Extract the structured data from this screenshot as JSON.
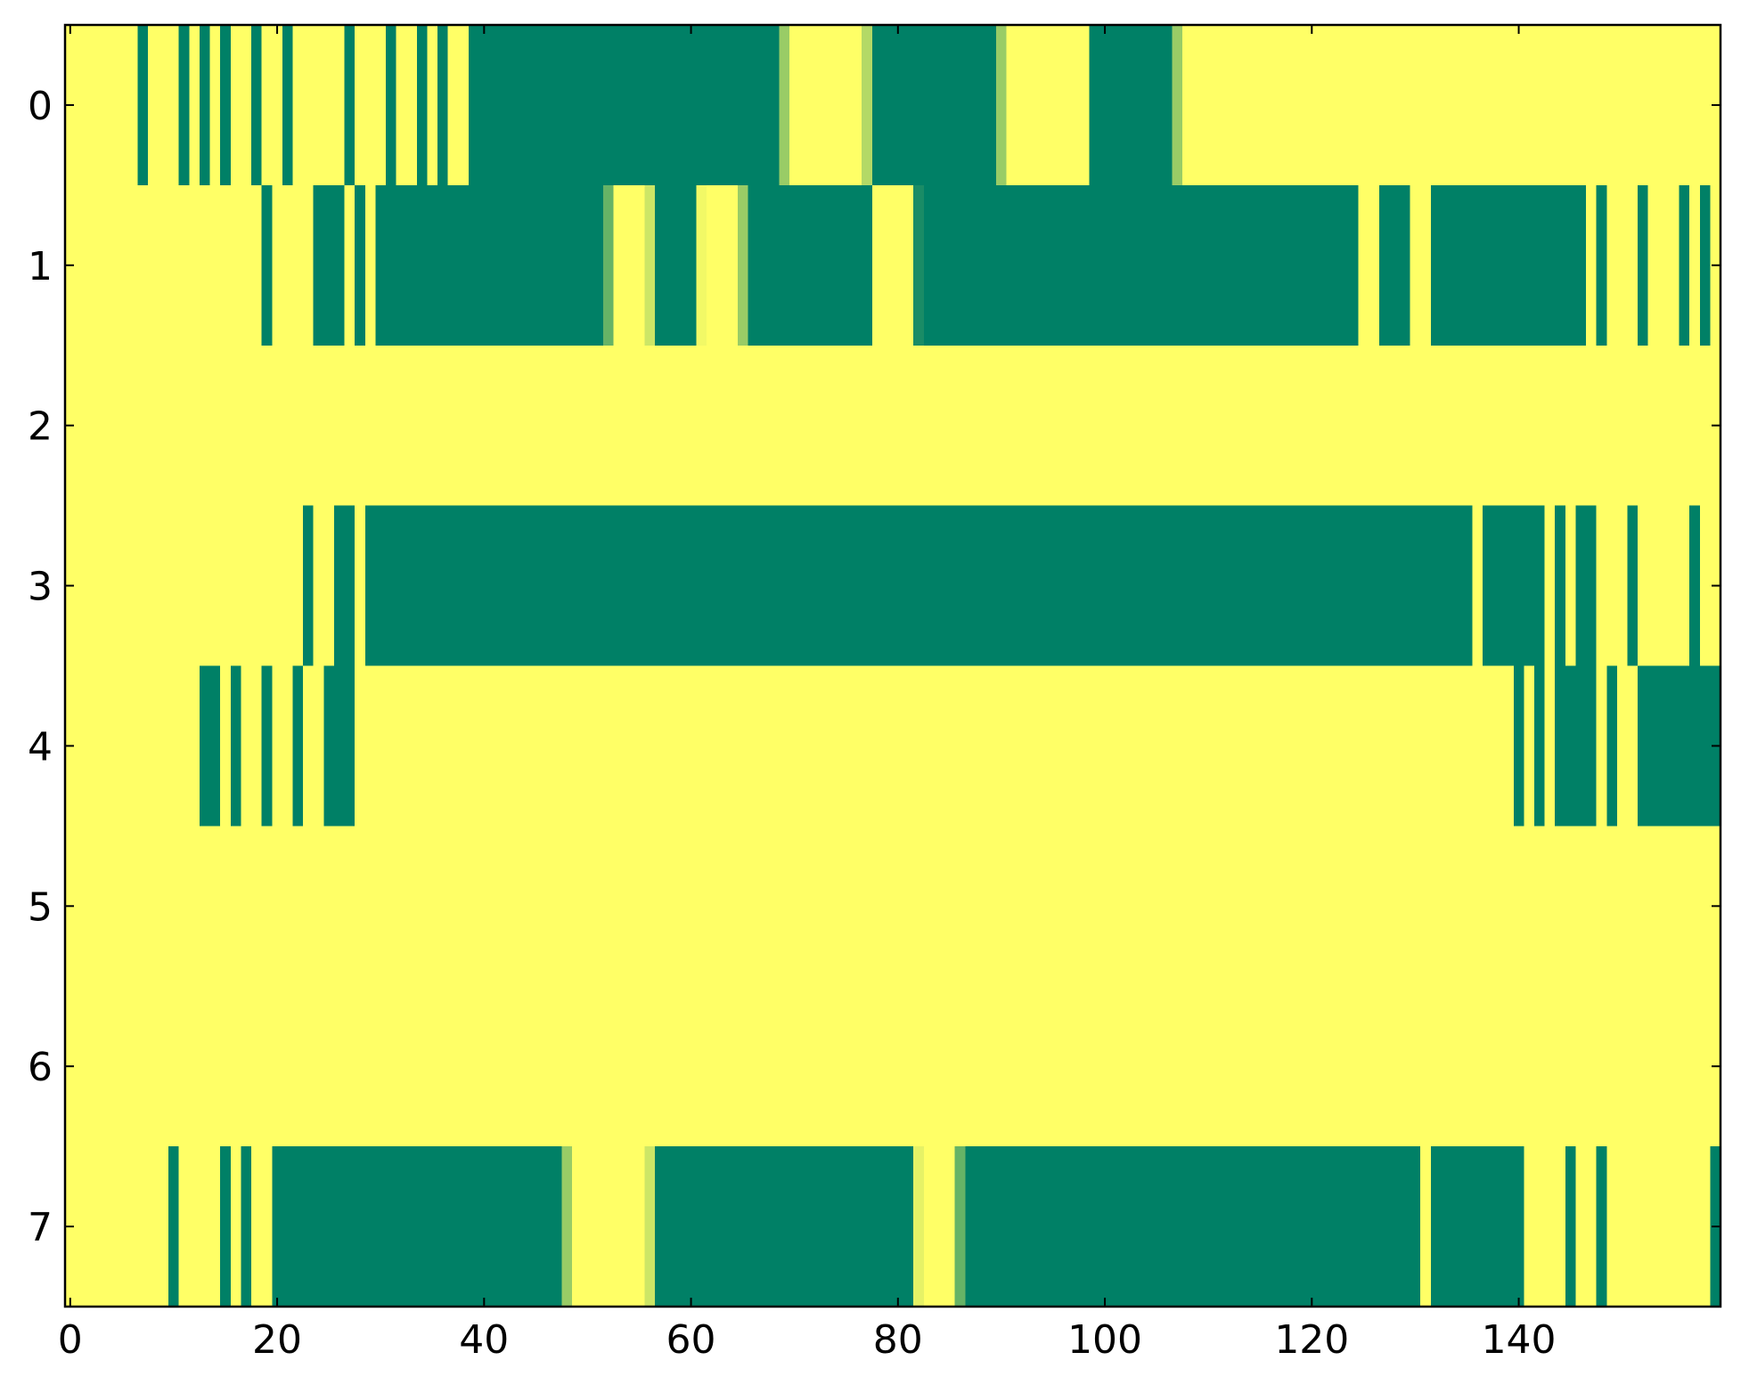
{
  "chart_data": {
    "type": "heatmap",
    "colormap": "summer",
    "vlim": [
      0,
      1
    ],
    "xlim": [
      -0.5,
      159.5
    ],
    "ylim": [
      7.5,
      -0.5
    ],
    "xticks": [
      0,
      20,
      40,
      60,
      80,
      100,
      120,
      140
    ],
    "yticks": [
      0,
      1,
      2,
      3,
      4,
      5,
      6,
      7
    ],
    "values": [
      [
        1,
        1,
        1,
        1,
        1,
        1,
        1,
        0,
        1,
        1,
        1,
        0,
        1,
        0,
        1,
        0,
        1,
        1,
        0,
        1,
        1,
        0,
        1,
        1,
        1,
        1,
        1,
        0,
        1,
        1,
        1,
        0,
        1,
        1,
        0,
        1,
        0,
        1,
        1,
        0,
        0,
        0,
        0,
        0,
        0,
        0,
        0,
        0,
        0,
        0,
        0,
        0,
        0,
        0,
        0,
        0,
        0,
        0,
        0,
        0,
        0,
        0,
        0,
        0,
        0,
        0,
        0,
        0,
        0,
        0.6,
        1,
        1,
        1,
        1,
        1,
        1,
        1,
        0.7,
        0,
        0,
        0,
        0,
        0,
        0,
        0,
        0,
        0,
        0,
        0,
        0,
        0.6,
        1,
        1,
        1,
        1,
        1,
        1,
        1,
        1,
        0,
        0,
        0,
        0,
        0,
        0,
        0,
        0,
        0.6,
        1,
        1,
        1,
        1,
        1,
        1,
        1,
        1,
        1,
        1,
        1,
        1,
        1,
        1,
        1,
        1,
        1,
        1,
        1,
        1,
        1,
        1,
        1,
        1,
        1,
        1,
        1,
        1,
        1,
        1,
        1,
        1,
        1,
        1,
        1,
        1,
        1,
        1,
        1,
        1,
        1,
        1,
        1,
        1,
        1,
        1,
        1,
        1,
        1,
        1,
        1,
        1
      ],
      [
        1,
        1,
        1,
        1,
        1,
        1,
        1,
        1,
        1,
        1,
        1,
        1,
        1,
        1,
        1,
        1,
        1,
        1,
        1,
        0,
        1,
        1,
        1,
        1,
        0,
        0,
        0,
        1,
        0,
        1,
        0,
        0,
        0,
        0,
        0,
        0,
        0,
        0,
        0,
        0,
        0,
        0,
        0,
        0,
        0,
        0,
        0,
        0,
        0,
        0,
        0,
        0,
        0.4,
        1,
        1,
        1,
        0.8,
        0,
        0,
        0,
        0,
        0.95,
        1,
        1,
        1,
        0.6,
        0,
        0,
        0,
        0,
        0,
        0,
        0,
        0,
        0,
        0,
        0,
        0,
        1,
        1,
        1,
        1,
        0.1,
        0,
        0,
        0,
        0,
        0,
        0,
        0,
        0,
        0,
        0,
        0,
        0,
        0,
        0,
        0,
        0,
        0,
        0,
        0,
        0,
        0,
        0,
        0,
        0,
        0,
        0,
        0,
        0,
        0,
        0,
        0,
        0,
        0,
        0,
        0,
        0,
        0,
        0,
        0,
        0,
        0,
        0,
        1,
        1,
        0,
        0,
        0,
        1,
        1,
        0,
        0,
        0,
        0,
        0,
        0,
        0,
        0,
        0,
        0,
        0,
        0,
        0,
        0,
        0,
        1,
        0,
        1,
        1,
        1,
        0,
        1,
        1,
        1,
        0,
        1,
        0,
        1
      ],
      [
        1,
        1,
        1,
        1,
        1,
        1,
        1,
        1,
        1,
        1,
        1,
        1,
        1,
        1,
        1,
        1,
        1,
        1,
        1,
        1,
        1,
        1,
        1,
        1,
        1,
        1,
        1,
        1,
        1,
        1,
        1,
        1,
        1,
        1,
        1,
        1,
        1,
        1,
        1,
        1,
        1,
        1,
        1,
        1,
        1,
        1,
        1,
        1,
        1,
        1,
        1,
        1,
        1,
        1,
        1,
        1,
        1,
        1,
        1,
        1,
        1,
        1,
        1,
        1,
        1,
        1,
        1,
        1,
        1,
        1,
        1,
        1,
        1,
        1,
        1,
        1,
        1,
        1,
        1,
        1,
        1,
        1,
        1,
        1,
        1,
        1,
        1,
        1,
        1,
        1,
        1,
        1,
        1,
        1,
        1,
        1,
        1,
        1,
        1,
        1,
        1,
        1,
        1,
        1,
        1,
        1,
        1,
        1,
        1,
        1,
        1,
        1,
        1,
        1,
        1,
        1,
        1,
        1,
        1,
        1,
        1,
        1,
        1,
        1,
        1,
        1,
        1,
        1,
        1,
        1,
        1,
        1,
        1,
        1,
        1,
        1,
        1,
        1,
        1,
        1,
        1,
        1,
        1,
        1,
        1,
        1,
        1,
        1,
        1,
        1,
        1,
        1,
        1,
        1,
        1,
        1,
        1,
        1,
        1,
        1
      ],
      [
        1,
        1,
        1,
        1,
        1,
        1,
        1,
        1,
        1,
        1,
        1,
        1,
        1,
        1,
        1,
        1,
        1,
        1,
        1,
        1,
        1,
        1,
        1,
        0,
        1,
        1,
        0,
        0,
        1,
        0,
        0,
        0,
        0,
        0,
        0,
        0,
        0,
        0,
        0,
        0,
        0,
        0,
        0,
        0,
        0,
        0,
        0,
        0,
        0,
        0,
        0,
        0,
        0,
        0,
        0,
        0,
        0,
        0,
        0,
        0,
        0,
        0,
        0,
        0,
        0,
        0,
        0,
        0,
        0,
        0,
        0,
        0,
        0,
        0,
        0,
        0,
        0,
        0,
        0,
        0,
        0,
        0,
        0,
        0,
        0,
        0,
        0,
        0,
        0,
        0,
        0,
        0,
        0,
        0,
        0,
        0,
        0,
        0,
        0,
        0,
        0,
        0,
        0,
        0,
        0,
        0,
        0,
        0,
        0,
        0,
        0,
        0,
        0,
        0,
        0,
        0,
        0,
        0,
        0,
        0,
        0,
        0,
        0,
        0,
        0,
        0,
        0,
        0,
        0,
        0,
        0,
        0,
        0,
        0,
        0,
        0,
        1,
        0,
        0,
        0,
        0,
        0,
        0,
        1,
        0,
        1,
        0,
        0,
        1,
        1,
        1,
        0,
        1,
        1,
        1,
        1,
        1,
        0,
        1,
        1
      ],
      [
        1,
        1,
        1,
        1,
        1,
        1,
        1,
        1,
        1,
        1,
        1,
        1,
        1,
        0,
        0,
        1,
        0,
        1,
        1,
        0,
        1,
        1,
        0,
        1,
        1,
        0,
        0,
        0,
        1,
        1,
        1,
        1,
        1,
        1,
        1,
        1,
        1,
        1,
        1,
        1,
        1,
        1,
        1,
        1,
        1,
        1,
        1,
        1,
        1,
        1,
        1,
        1,
        1,
        1,
        1,
        1,
        1,
        1,
        1,
        1,
        1,
        1,
        1,
        1,
        1,
        1,
        1,
        1,
        1,
        1,
        1,
        1,
        1,
        1,
        1,
        1,
        1,
        1,
        1,
        1,
        1,
        1,
        1,
        1,
        1,
        1,
        1,
        1,
        1,
        1,
        1,
        1,
        1,
        1,
        1,
        1,
        1,
        1,
        1,
        1,
        1,
        1,
        1,
        1,
        1,
        1,
        1,
        1,
        1,
        1,
        1,
        1,
        1,
        1,
        1,
        1,
        1,
        1,
        1,
        1,
        1,
        1,
        1,
        1,
        1,
        1,
        1,
        1,
        1,
        1,
        1,
        1,
        1,
        1,
        1,
        1,
        1,
        1,
        1,
        1,
        0,
        1,
        0,
        1,
        0,
        0,
        0,
        0,
        1,
        0,
        1,
        1,
        0,
        0,
        0,
        0,
        0,
        0,
        0,
        0
      ],
      [
        1,
        1,
        1,
        1,
        1,
        1,
        1,
        1,
        1,
        1,
        1,
        1,
        1,
        1,
        1,
        1,
        1,
        1,
        1,
        1,
        1,
        1,
        1,
        1,
        1,
        1,
        1,
        1,
        1,
        1,
        1,
        1,
        1,
        1,
        1,
        1,
        1,
        1,
        1,
        1,
        1,
        1,
        1,
        1,
        1,
        1,
        1,
        1,
        1,
        1,
        1,
        1,
        1,
        1,
        1,
        1,
        1,
        1,
        1,
        1,
        1,
        1,
        1,
        1,
        1,
        1,
        1,
        1,
        1,
        1,
        1,
        1,
        1,
        1,
        1,
        1,
        1,
        1,
        1,
        1,
        1,
        1,
        1,
        1,
        1,
        1,
        1,
        1,
        1,
        1,
        1,
        1,
        1,
        1,
        1,
        1,
        1,
        1,
        1,
        1,
        1,
        1,
        1,
        1,
        1,
        1,
        1,
        1,
        1,
        1,
        1,
        1,
        1,
        1,
        1,
        1,
        1,
        1,
        1,
        1,
        1,
        1,
        1,
        1,
        1,
        1,
        1,
        1,
        1,
        1,
        1,
        1,
        1,
        1,
        1,
        1,
        1,
        1,
        1,
        1,
        1,
        1,
        1,
        1,
        1,
        1,
        1,
        1,
        1,
        1,
        1,
        1,
        1,
        1,
        1,
        1,
        1,
        1,
        1,
        1
      ],
      [
        1,
        1,
        1,
        1,
        1,
        1,
        1,
        1,
        1,
        1,
        1,
        1,
        1,
        1,
        1,
        1,
        1,
        1,
        1,
        1,
        1,
        1,
        1,
        1,
        1,
        1,
        1,
        1,
        1,
        1,
        1,
        1,
        1,
        1,
        1,
        1,
        1,
        1,
        1,
        1,
        1,
        1,
        1,
        1,
        1,
        1,
        1,
        1,
        1,
        1,
        1,
        1,
        1,
        1,
        1,
        1,
        1,
        1,
        1,
        1,
        1,
        1,
        1,
        1,
        1,
        1,
        1,
        1,
        1,
        1,
        1,
        1,
        1,
        1,
        1,
        1,
        1,
        1,
        1,
        1,
        1,
        1,
        1,
        1,
        1,
        1,
        1,
        1,
        1,
        1,
        1,
        1,
        1,
        1,
        1,
        1,
        1,
        1,
        1,
        1,
        1,
        1,
        1,
        1,
        1,
        1,
        1,
        1,
        1,
        1,
        1,
        1,
        1,
        1,
        1,
        1,
        1,
        1,
        1,
        1,
        1,
        1,
        1,
        1,
        1,
        1,
        1,
        1,
        1,
        1,
        1,
        1,
        1,
        1,
        1,
        1,
        1,
        1,
        1,
        1,
        1,
        1,
        1,
        1,
        1,
        1,
        1,
        1,
        1,
        1,
        1,
        1,
        1,
        1,
        1,
        1,
        1,
        1,
        1,
        1
      ],
      [
        1,
        1,
        1,
        1,
        1,
        1,
        1,
        1,
        1,
        1,
        0,
        1,
        1,
        1,
        1,
        0,
        1,
        0,
        1,
        1,
        0,
        0,
        0,
        0,
        0,
        0,
        0,
        0,
        0,
        0,
        0,
        0,
        0,
        0,
        0,
        0,
        0,
        0,
        0,
        0,
        0,
        0,
        0,
        0,
        0,
        0,
        0,
        0,
        0.6,
        1,
        1,
        1,
        1,
        1,
        1,
        1,
        0.8,
        0,
        0,
        0,
        0,
        0,
        0,
        0,
        0,
        0,
        0,
        0,
        0,
        0,
        0,
        0,
        0,
        0,
        0,
        0,
        0,
        0,
        0,
        0,
        0,
        0,
        0.9,
        1,
        1,
        1,
        0.4,
        0,
        0,
        0,
        0,
        0,
        0,
        0,
        0,
        0,
        0,
        0,
        0,
        0,
        0,
        0,
        0,
        0,
        0,
        0,
        0,
        0,
        0,
        0,
        0,
        0,
        0,
        0,
        0,
        0,
        0,
        0,
        0,
        0,
        0,
        0,
        0,
        0,
        0,
        0,
        0,
        0,
        0,
        0,
        0,
        1,
        0,
        0,
        0,
        0,
        0,
        0,
        0,
        0,
        0,
        1,
        1,
        1,
        1,
        0,
        1,
        1,
        0,
        1,
        1,
        1,
        1,
        1,
        1,
        1,
        1,
        1,
        1,
        0
      ]
    ]
  }
}
